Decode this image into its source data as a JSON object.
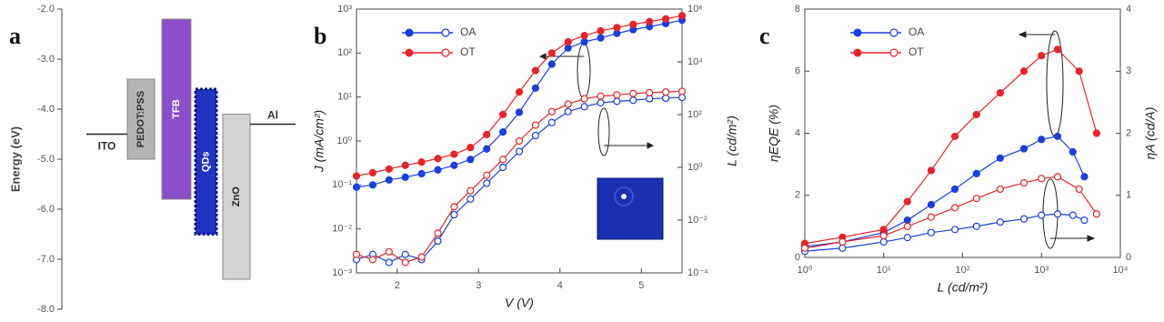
{
  "chart_data": [
    {
      "type": "energy",
      "panel_label": "a",
      "ylabel": "Energy (eV)",
      "ylim": [
        -2.0,
        -8.0
      ],
      "yticks": [
        {
          "value": -2,
          "label": "-2.0"
        },
        {
          "value": -3,
          "label": "-3.0"
        },
        {
          "value": -4,
          "label": "-4.0"
        },
        {
          "value": -5,
          "label": "-5.0"
        },
        {
          "value": -6,
          "label": "-6.0"
        },
        {
          "value": -7,
          "label": "-7.0"
        },
        {
          "value": -8,
          "label": "-8.0"
        }
      ],
      "layers": [
        {
          "name": "PEDOT:PSS",
          "values": [
            -3.4,
            -5.0
          ],
          "color": "#b4b4b4"
        },
        {
          "name": "TFB",
          "values": [
            -2.2,
            -5.8
          ],
          "color": "#8a4fc8"
        },
        {
          "name": "QDs",
          "values": [
            -3.6,
            -6.5
          ],
          "color": "#2233c4"
        },
        {
          "name": "ZnO",
          "values": [
            -4.1,
            -7.4
          ],
          "color": "#d2d2d2"
        }
      ],
      "electrodes": [
        {
          "name": "ITO",
          "value": -4.5
        },
        {
          "name": "Al",
          "value": -4.3
        }
      ]
    },
    {
      "type": "line",
      "panel_label": "b",
      "xlabel": "V  (V)",
      "ylabel": "J  (mA/cm²)",
      "y2label": "L  (cd/m²)",
      "xlim": [
        1.5,
        5.5
      ],
      "xticks": [
        2,
        3,
        4,
        5
      ],
      "ylog": true,
      "y2log": true,
      "ylim": [
        0.001,
        1000
      ],
      "yticks": [
        {
          "value": 0.001,
          "label": "10⁻³"
        },
        {
          "value": 0.01,
          "label": "10⁻²"
        },
        {
          "value": 0.1,
          "label": "10⁻¹"
        },
        {
          "value": 1,
          "label": "10⁰"
        },
        {
          "value": 10,
          "label": "10¹"
        },
        {
          "value": 100,
          "label": "10²"
        },
        {
          "value": 1000,
          "label": "10³"
        }
      ],
      "y2lim": [
        0.0001,
        1000000
      ],
      "y2ticks": [
        {
          "value": 0.0001,
          "label": "10⁻⁴"
        },
        {
          "value": 0.01,
          "label": "10⁻²"
        },
        {
          "value": 1,
          "label": "10⁰"
        },
        {
          "value": 100,
          "label": "10²"
        },
        {
          "value": 10000,
          "label": "10⁴"
        },
        {
          "value": 1000000,
          "label": "10⁶"
        }
      ],
      "x": [
        1.5,
        1.7,
        1.9,
        2.1,
        2.3,
        2.5,
        2.7,
        2.9,
        3.1,
        3.3,
        3.5,
        3.7,
        3.9,
        4.1,
        4.3,
        4.5,
        4.7,
        4.9,
        5.1,
        5.3,
        5.5
      ],
      "series": [
        {
          "name": "OA",
          "color": "#1a3fe0",
          "values": [
            0.089,
            0.1,
            0.13,
            0.15,
            0.18,
            0.22,
            0.28,
            0.38,
            0.66,
            1.6,
            4.5,
            16,
            56,
            130,
            180,
            220,
            280,
            340,
            400,
            470,
            560
          ],
          "y2_values": [
            0.00032,
            0.0005,
            0.00025,
            0.0005,
            0.00032,
            0.0016,
            0.016,
            0.063,
            0.25,
            1.0,
            4.0,
            16,
            50,
            130,
            200,
            280,
            320,
            350,
            400,
            420,
            450
          ]
        },
        {
          "name": "OT",
          "color": "#e8232a",
          "values": [
            0.16,
            0.19,
            0.23,
            0.28,
            0.33,
            0.4,
            0.5,
            0.71,
            1.4,
            4.0,
            13,
            40,
            100,
            180,
            250,
            320,
            380,
            450,
            520,
            600,
            710
          ],
          "y2_values": [
            0.0005,
            0.00032,
            0.00063,
            0.00025,
            0.0004,
            0.0032,
            0.032,
            0.13,
            0.5,
            2.0,
            10,
            40,
            130,
            250,
            400,
            500,
            560,
            630,
            680,
            720,
            760
          ]
        }
      ]
    },
    {
      "type": "line",
      "panel_label": "c",
      "xlabel": "L  (cd/m²)",
      "ylabel": "ηEQE (%)",
      "y2label": "ηA (cd/A)",
      "xlog": true,
      "xlim": [
        1,
        10000
      ],
      "xticks": [
        {
          "value": 1,
          "label": "10⁰"
        },
        {
          "value": 10,
          "label": "10¹"
        },
        {
          "value": 100,
          "label": "10²"
        },
        {
          "value": 1000,
          "label": "10³"
        },
        {
          "value": 10000,
          "label": "10⁴"
        }
      ],
      "ylim": [
        0,
        8
      ],
      "yticks": [
        0,
        2,
        4,
        6,
        8
      ],
      "y2lim": [
        0,
        4
      ],
      "y2ticks": [
        0,
        1,
        2,
        3,
        4
      ],
      "series": [
        {
          "name": "OA",
          "color": "#1a3fe0",
          "x": [
            1,
            3,
            10,
            20,
            40,
            80,
            150,
            300,
            600,
            1000,
            1600,
            2500,
            3500
          ],
          "values": [
            0.35,
            0.5,
            0.8,
            1.2,
            1.7,
            2.2,
            2.7,
            3.2,
            3.5,
            3.8,
            3.9,
            3.4,
            2.6
          ],
          "y2_values": [
            0.1,
            0.15,
            0.25,
            0.32,
            0.4,
            0.45,
            0.5,
            0.57,
            0.62,
            0.68,
            0.7,
            0.68,
            0.6
          ]
        },
        {
          "name": "OT",
          "color": "#e8232a",
          "x": [
            1,
            3,
            10,
            20,
            40,
            80,
            150,
            300,
            600,
            1000,
            1600,
            3000,
            5000
          ],
          "values": [
            0.45,
            0.65,
            0.9,
            1.8,
            2.8,
            3.9,
            4.6,
            5.3,
            6.0,
            6.5,
            6.7,
            6.0,
            4.0
          ],
          "y2_values": [
            0.15,
            0.25,
            0.35,
            0.5,
            0.65,
            0.8,
            0.95,
            1.1,
            1.2,
            1.27,
            1.3,
            1.1,
            0.7
          ]
        }
      ]
    }
  ]
}
